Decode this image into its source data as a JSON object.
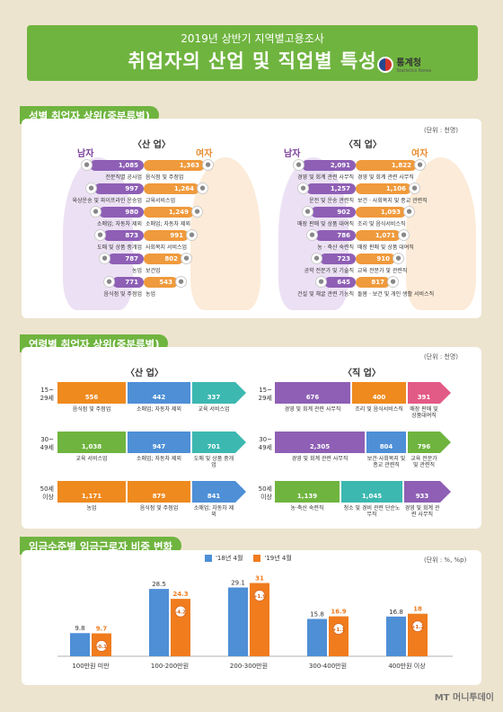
{
  "header": {
    "subtitle": "2019년 상반기 지역별고용조사",
    "title": "취업자의 산업 및 직업별 특성",
    "logo_text": "통계청",
    "logo_sub": "Statistics Korea"
  },
  "sec1": {
    "label": "성별 취업자 상위(중분류별)",
    "unit": "(단위 : 천명)",
    "industry_title": "〈산 업〉",
    "occupation_title": "〈직 업〉",
    "male": "남자",
    "female": "여자",
    "industry_male": [
      {
        "value": "1,085",
        "label": "전문직별 공사업"
      },
      {
        "value": "997",
        "label": "육상운송 및 파이프라인 운송업"
      },
      {
        "value": "980",
        "label": "소매업; 자동차 제외"
      },
      {
        "value": "873",
        "label": "도매 및 상품 중개업"
      },
      {
        "value": "787",
        "label": "농업"
      },
      {
        "value": "771",
        "label": "음식점 및 주점업"
      }
    ],
    "industry_female": [
      {
        "value": "1,363",
        "label": "음식점 및 주점업"
      },
      {
        "value": "1,264",
        "label": "교육서비스업"
      },
      {
        "value": "1,249",
        "label": "소매업; 자동차 제외"
      },
      {
        "value": "991",
        "label": "사회복지 서비스업"
      },
      {
        "value": "802",
        "label": "보건업"
      },
      {
        "value": "543",
        "label": "농업"
      }
    ],
    "occupation_male": [
      {
        "value": "2,091",
        "label": "경영 및 회계 관련 사무직"
      },
      {
        "value": "1,257",
        "label": "운전 및 운송 관련직"
      },
      {
        "value": "902",
        "label": "매장 판매 및 상품 대여직"
      },
      {
        "value": "786",
        "label": "농 · 축산 숙련직"
      },
      {
        "value": "723",
        "label": "공학 전문가 및 기술직"
      },
      {
        "value": "645",
        "label": "건설 및 채굴 관련 기능직"
      }
    ],
    "occupation_female": [
      {
        "value": "1,822",
        "label": "경영 및 회계 관련 사무직"
      },
      {
        "value": "1,106",
        "label": "보건 · 사회복지 및 종교 관련직"
      },
      {
        "value": "1,093",
        "label": "조리 및 음식서비스직"
      },
      {
        "value": "1,071",
        "label": "매장 판매 및 상품 대여직"
      },
      {
        "value": "910",
        "label": "교육 전문가 및 관련직"
      },
      {
        "value": "817",
        "label": "돌봄 · 보건 및 개인 생활 서비스직"
      }
    ]
  },
  "sec2": {
    "label": "연령별 취업자 상위(중분류별)",
    "unit": "(단위 : 천명)",
    "industry_title": "〈산 업〉",
    "occupation_title": "〈직 업〉",
    "ages": [
      {
        "l1": "15~",
        "l2": "29세"
      },
      {
        "l1": "30~",
        "l2": "49세"
      },
      {
        "l1": "50세",
        "l2": "이상"
      }
    ],
    "industry": [
      [
        {
          "value": "556",
          "label": "음식점 및 주점업"
        },
        {
          "value": "442",
          "label": "소매업; 자동차 제외"
        },
        {
          "value": "337",
          "label": "교육 서비스업"
        }
      ],
      [
        {
          "value": "1,038",
          "label": "교육 서비스업"
        },
        {
          "value": "947",
          "label": "소매업; 자동차 제외"
        },
        {
          "value": "701",
          "label": "도매 및 상품 중개업"
        }
      ],
      [
        {
          "value": "1,171",
          "label": "농업"
        },
        {
          "value": "879",
          "label": "음식점 및 주점업"
        },
        {
          "value": "841",
          "label": "소매업; 자동차 제외"
        }
      ]
    ],
    "occupation": [
      [
        {
          "value": "676",
          "label": "경영 및 회계 관련 사무직"
        },
        {
          "value": "400",
          "label": "조리 및 음식서비스직"
        },
        {
          "value": "391",
          "label": "매장 판매 및 상품대여직"
        }
      ],
      [
        {
          "value": "2,305",
          "label": "경영 및 회계 관련 사무직"
        },
        {
          "value": "804",
          "label": "보건·사회복지 및 종교 관련직"
        },
        {
          "value": "796",
          "label": "교육 전문가 및 관련직"
        }
      ],
      [
        {
          "value": "1,139",
          "label": "농·축산 숙련직"
        },
        {
          "value": "1,045",
          "label": "청소 및 경비 관련 단순노무직"
        },
        {
          "value": "933",
          "label": "경영 및 회계 관련 사무직"
        }
      ]
    ]
  },
  "sec3": {
    "label": "임금수준별 임금근로자 비중 변화",
    "unit": "(단위 : %, %p)"
  },
  "chart_data": {
    "type": "bar",
    "categories": [
      "100만원 미만",
      "100-200만원",
      "200-300만원",
      "300-400만원",
      "400만원 이상"
    ],
    "series": [
      {
        "name": "'18년 4월",
        "values": [
          9.8,
          28.5,
          29.1,
          15.8,
          16.8
        ]
      },
      {
        "name": "'19년 4월",
        "values": [
          9.7,
          24.3,
          31.0,
          16.9,
          18.0
        ]
      }
    ],
    "changes": [
      "-0.1",
      "-4.2",
      "+1.9",
      "+1.1",
      "+1.2"
    ],
    "ylim": [
      0,
      35
    ],
    "colors": [
      "#4e8fd6",
      "#f07c1e"
    ],
    "legend": "top"
  },
  "watermark": "MT 머니투데이"
}
